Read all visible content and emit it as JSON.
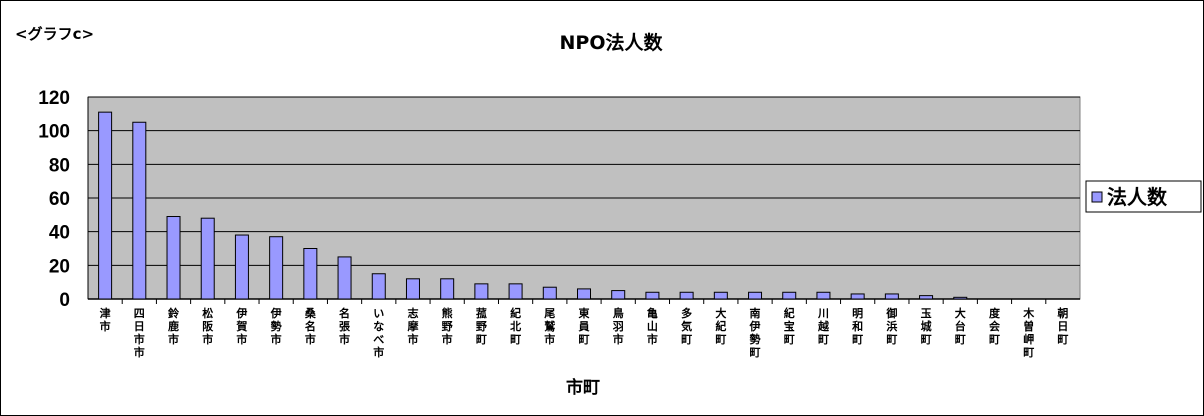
{
  "graph_tag": "<グラフc>",
  "colors": {
    "plot_bg": "#c0c0c0",
    "bar_fill": "#9999ff",
    "bar_stroke": "#000000",
    "gridline": "#000000"
  },
  "chart_data": {
    "type": "bar",
    "title": "NPO法人数",
    "xlabel": "市町",
    "ylabel": "",
    "ylim": [
      0,
      120
    ],
    "yticks": [
      0,
      20,
      40,
      60,
      80,
      100,
      120
    ],
    "grid": true,
    "legend_position": "right",
    "categories": [
      "津市",
      "四日市市",
      "鈴鹿市",
      "松阪市",
      "伊賀市",
      "伊勢市",
      "桑名市",
      "名張市",
      "いなべ市",
      "志摩市",
      "熊野市",
      "菰野町",
      "紀北町",
      "尾鷲市",
      "東員町",
      "鳥羽市",
      "亀山市",
      "多気町",
      "大紀町",
      "南伊勢町",
      "紀宝町",
      "川越町",
      "明和町",
      "御浜町",
      "玉城町",
      "大台町",
      "度会町",
      "木曽岬町",
      "朝日町"
    ],
    "series": [
      {
        "name": "法人数",
        "values": [
          111,
          105,
          49,
          48,
          38,
          37,
          30,
          25,
          15,
          12,
          12,
          9,
          9,
          7,
          6,
          5,
          4,
          4,
          4,
          4,
          4,
          4,
          3,
          3,
          2,
          1,
          0,
          0,
          0
        ]
      }
    ]
  }
}
